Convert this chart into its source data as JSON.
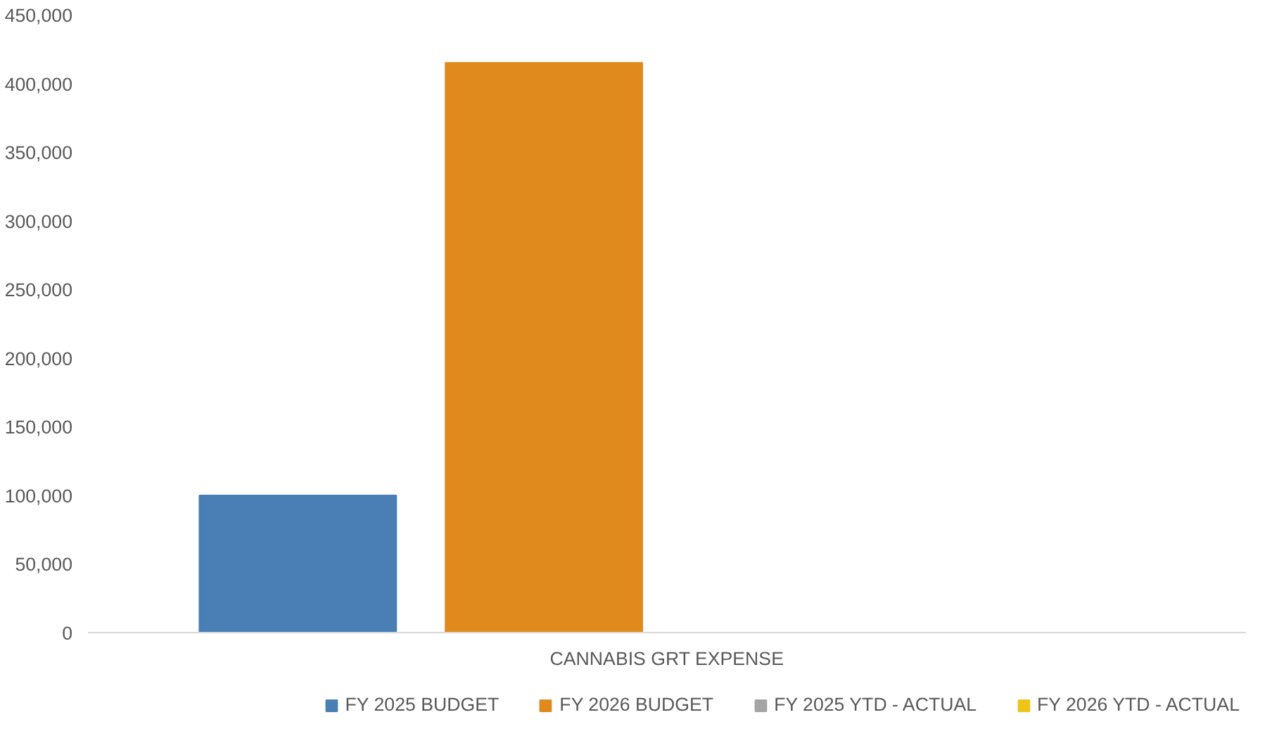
{
  "chart_data": {
    "type": "bar",
    "categories": [
      "CANNABIS GRT EXPENSE"
    ],
    "series": [
      {
        "name": "FY 2025 BUDGET",
        "color": "#4a7fb5",
        "values": [
          100000
        ]
      },
      {
        "name": "FY 2026 BUDGET",
        "color": "#e08a1e",
        "values": [
          415000
        ]
      },
      {
        "name": "FY 2025 YTD - ACTUAL",
        "color": "#a5a5a5",
        "values": [
          0
        ]
      },
      {
        "name": "FY 2026 YTD - ACTUAL",
        "color": "#f0c419",
        "values": [
          0
        ]
      }
    ],
    "ylim": [
      0,
      450000
    ],
    "yticks": [
      0,
      {
        "value": 50000,
        "label": "50,000"
      },
      {
        "value": 100000,
        "label": "100,000"
      },
      {
        "value": 150000,
        "label": "150,000"
      },
      {
        "value": 200000,
        "label": "200,000"
      },
      {
        "value": 250000,
        "label": "250,000"
      },
      {
        "value": 300000,
        "label": "300,000"
      },
      {
        "value": 350000,
        "label": "350,000"
      },
      {
        "value": 400000,
        "label": "400,000"
      },
      {
        "value": 450000,
        "label": "450,000"
      }
    ],
    "grid": false,
    "legend": "bottom"
  }
}
